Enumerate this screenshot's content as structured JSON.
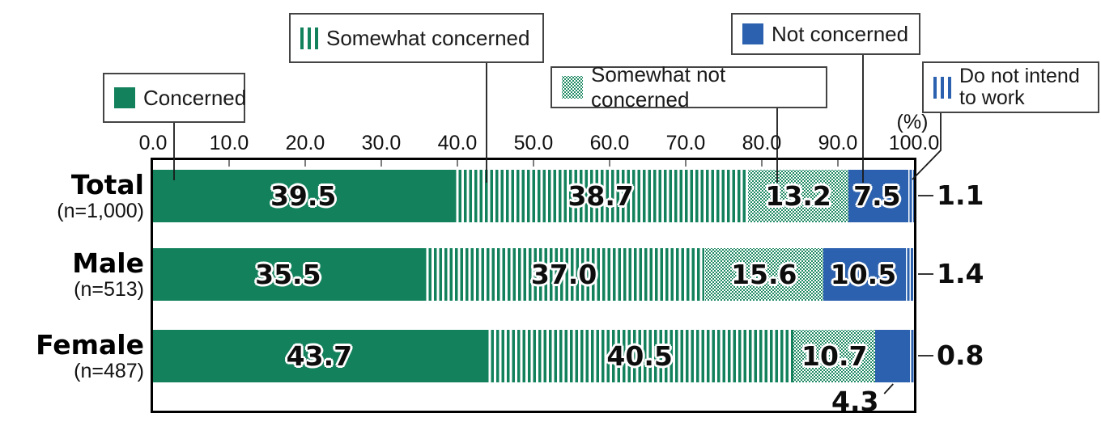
{
  "legend": [
    {
      "label": "Concerned",
      "pattern": "solid-green"
    },
    {
      "label": "Somewhat concerned",
      "pattern": "stripes-green"
    },
    {
      "label": "Somewhat not concerned",
      "pattern": "dots-green"
    },
    {
      "label": "Not concerned",
      "pattern": "solid-blue"
    },
    {
      "label": "Do not intend to work",
      "pattern": "stripes-blue"
    }
  ],
  "colors": {
    "green": "#13815C",
    "blue": "#2B61AE"
  },
  "chart_data": {
    "type": "bar",
    "orientation": "horizontal-stacked",
    "unit": "(%)",
    "xlim": [
      0,
      100
    ],
    "x_ticks": [
      "0.0",
      "10.0",
      "20.0",
      "30.0",
      "40.0",
      "50.0",
      "60.0",
      "70.0",
      "80.0",
      "90.0",
      "100.0"
    ],
    "categories": [
      {
        "name": "Total",
        "n_label": "(n=1,000)"
      },
      {
        "name": "Male",
        "n_label": "(n=513)"
      },
      {
        "name": "Female",
        "n_label": "(n=487)"
      }
    ],
    "series": [
      {
        "name": "Concerned",
        "pattern": "solid-green",
        "values": [
          39.5,
          35.5,
          43.7
        ]
      },
      {
        "name": "Somewhat concerned",
        "pattern": "stripes-green",
        "values": [
          38.7,
          37.0,
          40.5
        ]
      },
      {
        "name": "Somewhat not concerned",
        "pattern": "dots-green",
        "values": [
          13.2,
          15.6,
          10.7
        ]
      },
      {
        "name": "Not concerned",
        "pattern": "solid-blue",
        "values": [
          7.5,
          10.5,
          4.3
        ]
      },
      {
        "name": "Do not intend to work",
        "pattern": "stripes-blue",
        "values": [
          1.1,
          1.4,
          0.8
        ]
      }
    ],
    "value_format": "one-decimal",
    "grid": false,
    "legend_position": "top-callout-boxes"
  }
}
